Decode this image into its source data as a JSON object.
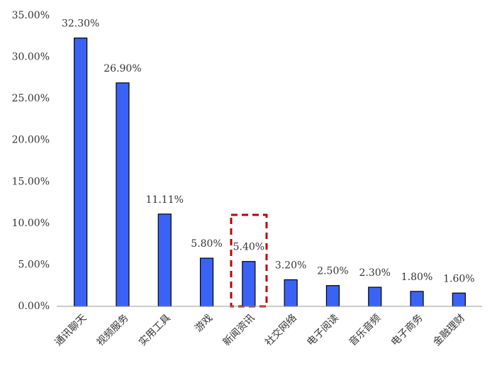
{
  "chart_data": {
    "type": "bar",
    "categories": [
      "通讯聊天",
      "视频服务",
      "实用工具",
      "游戏",
      "新闻资讯",
      "社交网络",
      "电子阅读",
      "音乐音频",
      "电子商务",
      "金融理财"
    ],
    "values": [
      32.3,
      26.9,
      11.11,
      5.8,
      5.4,
      3.2,
      2.5,
      2.3,
      1.8,
      1.6
    ],
    "value_labels": [
      "32.30%",
      "26.90%",
      "11.11%",
      "5.80%",
      "5.40%",
      "3.20%",
      "2.50%",
      "2.30%",
      "1.80%",
      "1.60%"
    ],
    "color": "#3a63f5",
    "ylim": [
      0,
      35
    ],
    "yticks": [
      {
        "value": 0,
        "label": "0.00%"
      },
      {
        "value": 5,
        "label": "5.00%"
      },
      {
        "value": 10,
        "label": "10.00%"
      },
      {
        "value": 15,
        "label": "15.00%"
      },
      {
        "value": 20,
        "label": "20.00%"
      },
      {
        "value": 25,
        "label": "25.00%"
      },
      {
        "value": 30,
        "label": "30.00%"
      },
      {
        "value": 35,
        "label": "35.00%"
      }
    ],
    "grid": false
  }
}
